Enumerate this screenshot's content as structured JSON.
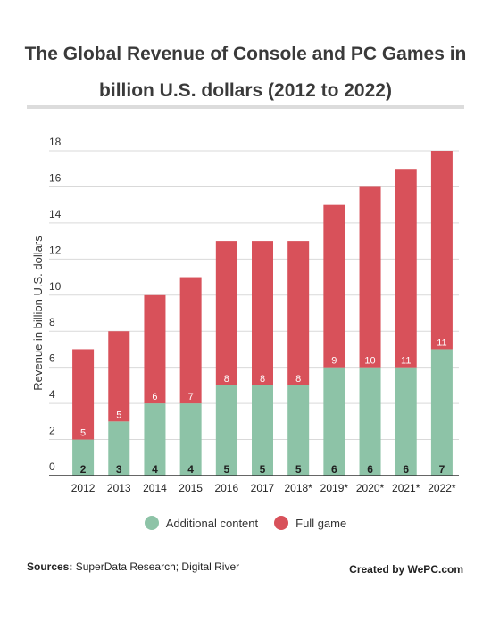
{
  "title": "The Global Revenue of Console and PC Games in billion U.S. dollars (2012 to 2022)",
  "footer": {
    "sources_label": "Sources:",
    "sources_text": "SuperData Research; Digital River",
    "credit": "Created by WePC.com"
  },
  "chart_data": {
    "type": "bar",
    "stacked": true,
    "title": "The Global Revenue of Console and PC Games in billion U.S. dollars (2012 to 2022)",
    "xlabel": "",
    "ylabel": "Revenue in billion U.S. dollars",
    "ylim": [
      0,
      18
    ],
    "yticks": [
      0,
      2,
      4,
      6,
      8,
      10,
      12,
      14,
      16,
      18
    ],
    "categories": [
      "2012",
      "2013",
      "2014",
      "2015",
      "2016",
      "2017",
      "2018*",
      "2019*",
      "2020*",
      "2021*",
      "2022*"
    ],
    "series": [
      {
        "name": "Additional content",
        "color": "#8dc3a7",
        "values": [
          2,
          3,
          4,
          4,
          5,
          5,
          5,
          6,
          6,
          6,
          7
        ]
      },
      {
        "name": "Full game",
        "color": "#d8515a",
        "values": [
          5,
          5,
          6,
          7,
          8,
          8,
          8,
          9,
          10,
          11,
          11
        ]
      }
    ],
    "grid": true,
    "legend": "bottom-center"
  }
}
